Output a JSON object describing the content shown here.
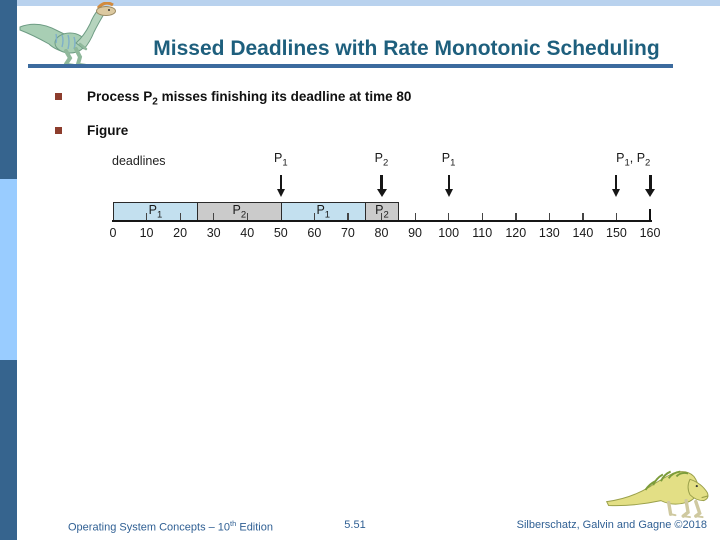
{
  "header": {
    "title": "Missed Deadlines with Rate Monotonic Scheduling"
  },
  "bullets": [
    {
      "pre": "Process P",
      "sub": "2",
      "post": " misses finishing its deadline at time 80"
    },
    {
      "pre": "Figure",
      "sub": "",
      "post": ""
    }
  ],
  "figure": {
    "deadlines_label": "deadlines",
    "time_range": [
      0,
      160
    ],
    "deadline_groups": [
      {
        "label_parts": [
          {
            "t": "P",
            "sub": "1"
          }
        ],
        "arrows": [
          {
            "time": 50,
            "bold": false
          }
        ]
      },
      {
        "label_parts": [
          {
            "t": "P",
            "sub": "2"
          }
        ],
        "arrows": [
          {
            "time": 80,
            "bold": true
          }
        ]
      },
      {
        "label_parts": [
          {
            "t": "P",
            "sub": "1"
          }
        ],
        "arrows": [
          {
            "time": 100,
            "bold": false
          }
        ]
      },
      {
        "label_parts": [
          {
            "t": "P",
            "sub": "1"
          },
          {
            "t": ", P",
            "sub": "2"
          }
        ],
        "arrows": [
          {
            "time": 150,
            "bold": false
          },
          {
            "time": 160,
            "bold": true
          }
        ]
      }
    ],
    "segments": [
      {
        "label": {
          "t": "P",
          "sub": "1"
        },
        "start": 0,
        "end": 25,
        "kind": "p1"
      },
      {
        "label": {
          "t": "P",
          "sub": "2"
        },
        "start": 25,
        "end": 50,
        "kind": "p2"
      },
      {
        "label": {
          "t": "P",
          "sub": "1"
        },
        "start": 50,
        "end": 75,
        "kind": "p1"
      },
      {
        "label": {
          "t": "P",
          "sub": "2"
        },
        "start": 75,
        "end": 85,
        "kind": "p2"
      }
    ],
    "axis_labels": [
      {
        "t": 0,
        "label": "0"
      },
      {
        "t": 10,
        "label": "10"
      },
      {
        "t": 20,
        "label": "20"
      },
      {
        "t": 30,
        "label": "30"
      },
      {
        "t": 40,
        "label": "40"
      },
      {
        "t": 50,
        "label": "50"
      },
      {
        "t": 60,
        "label": "60"
      },
      {
        "t": 70,
        "label": "70"
      },
      {
        "t": 80,
        "label": "80"
      },
      {
        "t": 90,
        "label": "90"
      },
      {
        "t": 100,
        "label": "100"
      },
      {
        "t": 110,
        "label": "110"
      },
      {
        "t": 120,
        "label": "120"
      },
      {
        "t": 130,
        "label": "130"
      },
      {
        "t": 140,
        "label": "140"
      },
      {
        "t": 150,
        "label": "150"
      },
      {
        "t": 160,
        "label": "160"
      }
    ],
    "ticks_in_bar": [
      10,
      20,
      30,
      40,
      60,
      70,
      80
    ],
    "ticks_after_bar": [
      90,
      100,
      110,
      120,
      130,
      140,
      150
    ],
    "end_tick_time": 160,
    "colors": {
      "p1_fill": "#c3e0ef",
      "p2_fill": "#cbcbcb"
    }
  },
  "footer": {
    "left_pre": "Operating System Concepts – 10",
    "left_sup": "th",
    "left_post": " Edition",
    "page": "5.51",
    "right": "Silberschatz, Galvin and Gagne ©2018"
  },
  "colors": {
    "title": "#1e5f7d",
    "rule": "#3c6b9e",
    "strip_dark": "#36648e",
    "strip_light": "#99ccff",
    "top_border": "#b9d2ee",
    "bullet_square": "#8d3d2d",
    "footer_text": "#2f5f93"
  }
}
